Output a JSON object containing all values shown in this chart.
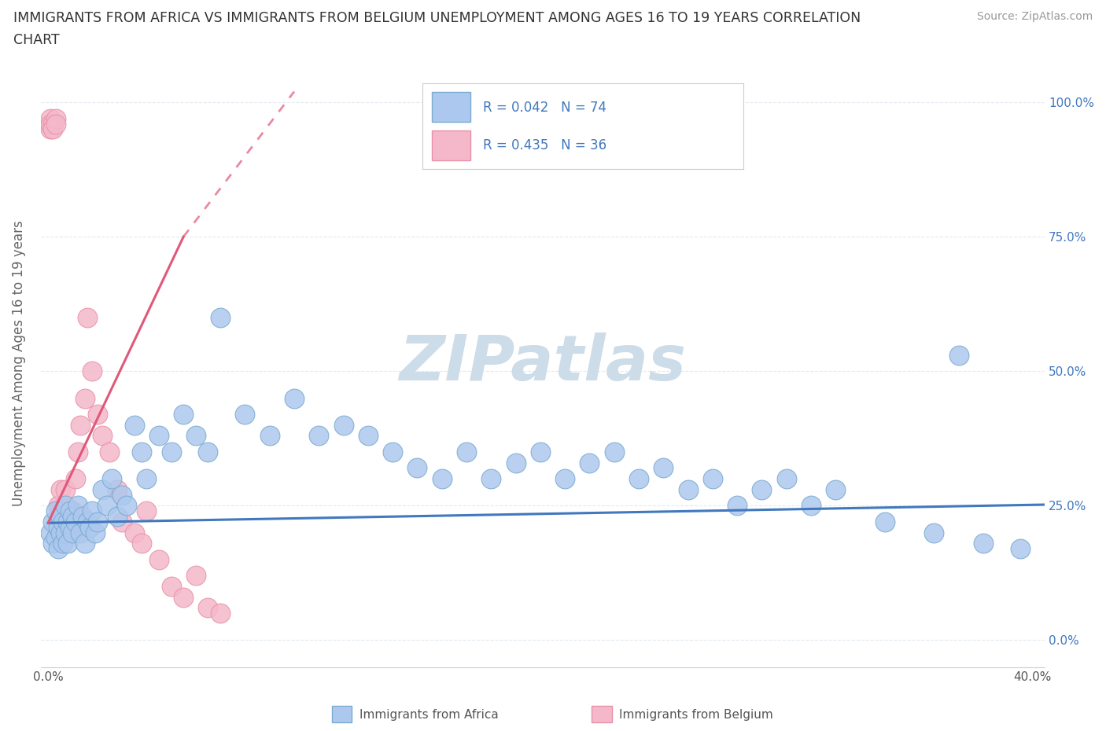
{
  "title_line1": "IMMIGRANTS FROM AFRICA VS IMMIGRANTS FROM BELGIUM UNEMPLOYMENT AMONG AGES 16 TO 19 YEARS CORRELATION",
  "title_line2": "CHART",
  "source": "Source: ZipAtlas.com",
  "ylabel": "Unemployment Among Ages 16 to 19 years",
  "xlim": [
    -0.003,
    0.405
  ],
  "ylim": [
    -0.05,
    1.08
  ],
  "xticks": [
    0.0,
    0.1,
    0.2,
    0.3,
    0.4
  ],
  "xtick_labels_show": [
    "0.0%",
    "",
    "",
    "",
    "40.0%"
  ],
  "yticks": [
    0.0,
    0.25,
    0.5,
    0.75,
    1.0
  ],
  "ytick_labels": [
    "0.0%",
    "25.0%",
    "50.0%",
    "75.0%",
    "100.0%"
  ],
  "africa_color": "#adc8ee",
  "africa_edge": "#7aaacf",
  "belgium_color": "#f4b8ca",
  "belgium_edge": "#e890a8",
  "trend_africa_color": "#4178be",
  "trend_belgium_color": "#e05878",
  "watermark": "ZIPatlas",
  "watermark_color": "#ccdce8",
  "legend_label_africa": "Immigrants from Africa",
  "legend_label_belgium": "Immigrants from Belgium",
  "africa_trend_x0": 0.0,
  "africa_trend_y0": 0.218,
  "africa_trend_x1": 0.405,
  "africa_trend_y1": 0.252,
  "belgium_trend_solid_x0": 0.0,
  "belgium_trend_solid_y0": 0.218,
  "belgium_trend_solid_x1": 0.055,
  "belgium_trend_solid_y1": 0.75,
  "belgium_trend_dash_x0": 0.055,
  "belgium_trend_dash_y0": 0.75,
  "belgium_trend_dash_x1": 0.1,
  "belgium_trend_dash_y1": 1.02,
  "africa_x": [
    0.001,
    0.002,
    0.002,
    0.003,
    0.003,
    0.004,
    0.004,
    0.005,
    0.005,
    0.006,
    0.006,
    0.007,
    0.007,
    0.008,
    0.008,
    0.009,
    0.009,
    0.01,
    0.01,
    0.011,
    0.012,
    0.013,
    0.014,
    0.015,
    0.016,
    0.017,
    0.018,
    0.019,
    0.02,
    0.022,
    0.024,
    0.026,
    0.028,
    0.03,
    0.032,
    0.035,
    0.038,
    0.04,
    0.045,
    0.05,
    0.055,
    0.06,
    0.065,
    0.07,
    0.08,
    0.09,
    0.1,
    0.11,
    0.12,
    0.13,
    0.14,
    0.15,
    0.16,
    0.17,
    0.18,
    0.19,
    0.2,
    0.21,
    0.22,
    0.23,
    0.24,
    0.25,
    0.26,
    0.27,
    0.28,
    0.29,
    0.3,
    0.31,
    0.32,
    0.34,
    0.36,
    0.38,
    0.395,
    0.37
  ],
  "africa_y": [
    0.2,
    0.22,
    0.18,
    0.24,
    0.19,
    0.21,
    0.17,
    0.23,
    0.2,
    0.22,
    0.18,
    0.25,
    0.2,
    0.22,
    0.18,
    0.24,
    0.21,
    0.2,
    0.23,
    0.22,
    0.25,
    0.2,
    0.23,
    0.18,
    0.22,
    0.21,
    0.24,
    0.2,
    0.22,
    0.28,
    0.25,
    0.3,
    0.23,
    0.27,
    0.25,
    0.4,
    0.35,
    0.3,
    0.38,
    0.35,
    0.42,
    0.38,
    0.35,
    0.6,
    0.42,
    0.38,
    0.45,
    0.38,
    0.4,
    0.38,
    0.35,
    0.32,
    0.3,
    0.35,
    0.3,
    0.33,
    0.35,
    0.3,
    0.33,
    0.35,
    0.3,
    0.32,
    0.28,
    0.3,
    0.25,
    0.28,
    0.3,
    0.25,
    0.28,
    0.22,
    0.2,
    0.18,
    0.17,
    0.53
  ],
  "belgium_x": [
    0.001,
    0.001,
    0.001,
    0.002,
    0.002,
    0.003,
    0.003,
    0.004,
    0.004,
    0.005,
    0.005,
    0.006,
    0.007,
    0.008,
    0.009,
    0.01,
    0.011,
    0.012,
    0.013,
    0.015,
    0.016,
    0.018,
    0.02,
    0.022,
    0.025,
    0.028,
    0.03,
    0.035,
    0.038,
    0.04,
    0.045,
    0.05,
    0.055,
    0.06,
    0.065,
    0.07
  ],
  "belgium_y": [
    0.95,
    0.97,
    0.96,
    0.96,
    0.95,
    0.97,
    0.96,
    0.25,
    0.22,
    0.28,
    0.24,
    0.22,
    0.28,
    0.22,
    0.2,
    0.24,
    0.3,
    0.35,
    0.4,
    0.45,
    0.6,
    0.5,
    0.42,
    0.38,
    0.35,
    0.28,
    0.22,
    0.2,
    0.18,
    0.24,
    0.15,
    0.1,
    0.08,
    0.12,
    0.06,
    0.05
  ]
}
